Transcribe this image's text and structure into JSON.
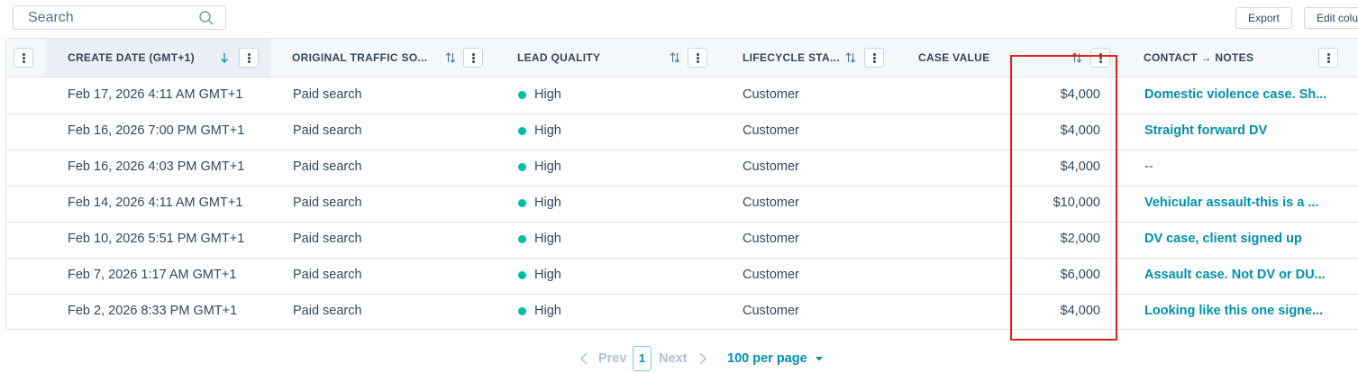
{
  "toolbar": {
    "search_placeholder": "Search",
    "export": "Export",
    "edit_columns": "Edit columns"
  },
  "table": {
    "columns": [
      "CREATE DATE (GMT+1)",
      "ORIGINAL TRAFFIC SO...",
      "LEAD QUALITY",
      "LIFECYCLE STA...",
      "CASE VALUE",
      "CONTACT → NOTES"
    ],
    "rows": [
      [
        "Feb 17, 2026 4:11 AM GMT+1",
        "Paid search",
        "High",
        "Customer",
        "$4,000",
        "Domestic violence case. Sh..."
      ],
      [
        "Feb 16, 2026 7:00 PM GMT+1",
        "Paid search",
        "High",
        "Customer",
        "$4,000",
        "Straight forward DV"
      ],
      [
        "Feb 16, 2026 4:03 PM GMT+1",
        "Paid search",
        "High",
        "Customer",
        "$4,000",
        "--"
      ],
      [
        "Feb 14, 2026 4:11 AM GMT+1",
        "Paid search",
        "High",
        "Customer",
        "$10,000",
        "Vehicular assault-this is a ..."
      ],
      [
        "Feb 10, 2026 5:51 PM GMT+1",
        "Paid search",
        "High",
        "Customer",
        "$2,000",
        "DV case, client signed up"
      ],
      [
        "Feb 7, 2026 1:17 AM GMT+1",
        "Paid search",
        "High",
        "Customer",
        "$6,000",
        "Assault case. Not DV or DU..."
      ],
      [
        "Feb 2, 2026 8:33 PM GMT+1",
        "Paid search",
        "High",
        "Customer",
        "$4,000",
        "Looking like this one signe..."
      ]
    ]
  },
  "pagination": {
    "prev": "Prev",
    "page": "1",
    "next": "Next",
    "per_page": "100 per page"
  }
}
